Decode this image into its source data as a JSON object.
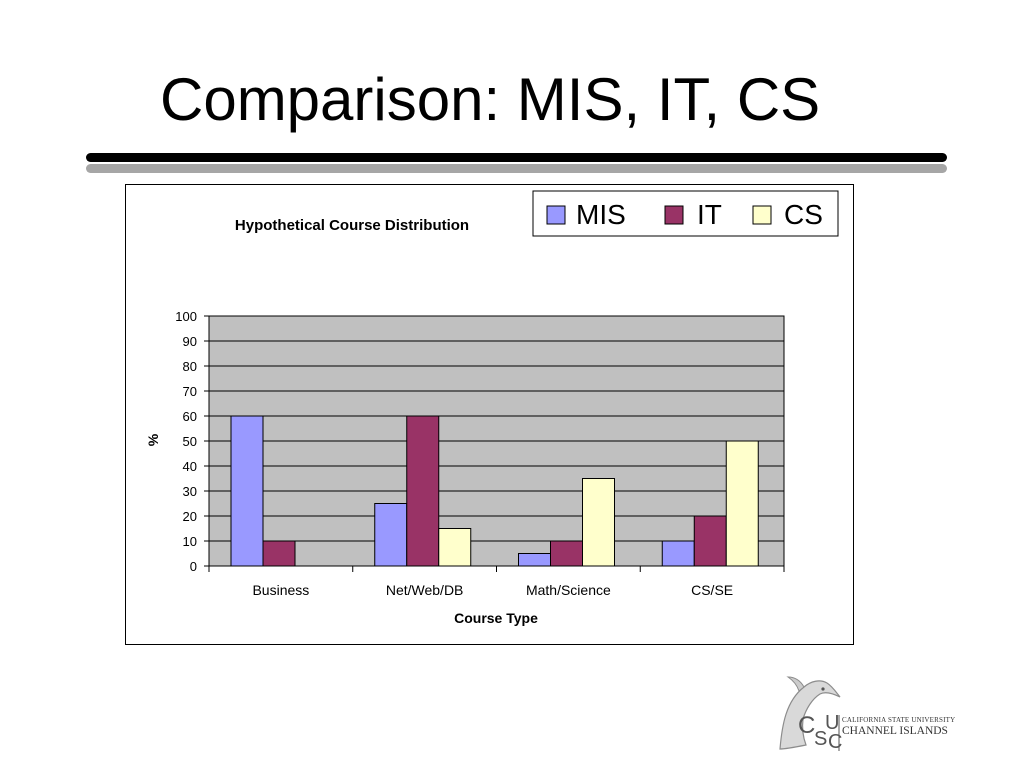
{
  "slide": {
    "title": "Comparison: MIS, IT, CS"
  },
  "logo": {
    "monogram": "CSUCI",
    "line1": "CALIFORNIA STATE UNIVERSITY",
    "line2": "CHANNEL ISLANDS",
    "icon": "dolphin-icon"
  },
  "chart_data": {
    "type": "bar",
    "title": "Hypothetical Course Distribution",
    "xlabel": "Course Type",
    "ylabel": "%",
    "categories": [
      "Business",
      "Net/Web/DB",
      "Math/Science",
      "CS/SE"
    ],
    "series": [
      {
        "name": "MIS",
        "color": "#9999ff",
        "values": [
          60,
          25,
          5,
          10
        ]
      },
      {
        "name": "IT",
        "color": "#993366",
        "values": [
          10,
          60,
          10,
          20
        ]
      },
      {
        "name": "CS",
        "color": "#ffffcc",
        "values": [
          0,
          15,
          35,
          50
        ]
      }
    ],
    "ylim": [
      0,
      100
    ],
    "yticks": [
      0,
      10,
      20,
      30,
      40,
      50,
      60,
      70,
      80,
      90,
      100
    ],
    "grid": true,
    "plot_background": "#c0c0c0",
    "legend_position": "top-right"
  }
}
